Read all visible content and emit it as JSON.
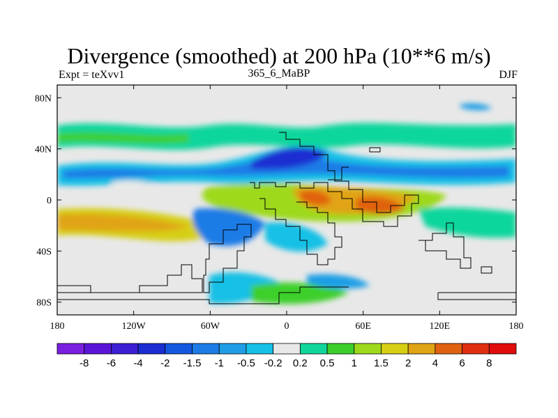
{
  "title": "Divergence (smoothed) at 200 hPa (10**6 m/s)",
  "subtitle_left": "Expt = teXvv1",
  "subtitle_center": "365_6_MaBP",
  "subtitle_right": "DJF",
  "axes": {
    "x_ticks": [
      {
        "lon": -180,
        "label": "180"
      },
      {
        "lon": -120,
        "label": "120W"
      },
      {
        "lon": -60,
        "label": "60W"
      },
      {
        "lon": 0,
        "label": "0"
      },
      {
        "lon": 60,
        "label": "60E"
      },
      {
        "lon": 120,
        "label": "120E"
      },
      {
        "lon": 180,
        "label": "180"
      }
    ],
    "y_ticks": [
      {
        "lat": 80,
        "label": "80N"
      },
      {
        "lat": 40,
        "label": "40N"
      },
      {
        "lat": 0,
        "label": "0"
      },
      {
        "lat": -40,
        "label": "40S"
      },
      {
        "lat": -80,
        "label": "80S"
      }
    ],
    "lon_range": [
      -180,
      180
    ],
    "lat_range": [
      -90,
      90
    ]
  },
  "colorbar": {
    "colors": [
      "#7a1fe0",
      "#5a16d8",
      "#3d1fd4",
      "#1a2ed2",
      "#1458e0",
      "#1e7ce6",
      "#1f9ee6",
      "#16c0e6",
      "#e8e8e8",
      "#10d69c",
      "#3ccf2c",
      "#9ed91c",
      "#d6cf14",
      "#e0a414",
      "#e06210",
      "#e02e10",
      "#e00c0c"
    ],
    "labels": [
      "-8",
      "-6",
      "-4",
      "-2",
      "-1.5",
      "-1",
      "-0.5",
      "-0.2",
      "0.2",
      "0.5",
      "1",
      "1.5",
      "2",
      "4",
      "6",
      "8"
    ]
  },
  "colors": {
    "neutral": "#e8e8e8",
    "coast": "#000000"
  }
}
